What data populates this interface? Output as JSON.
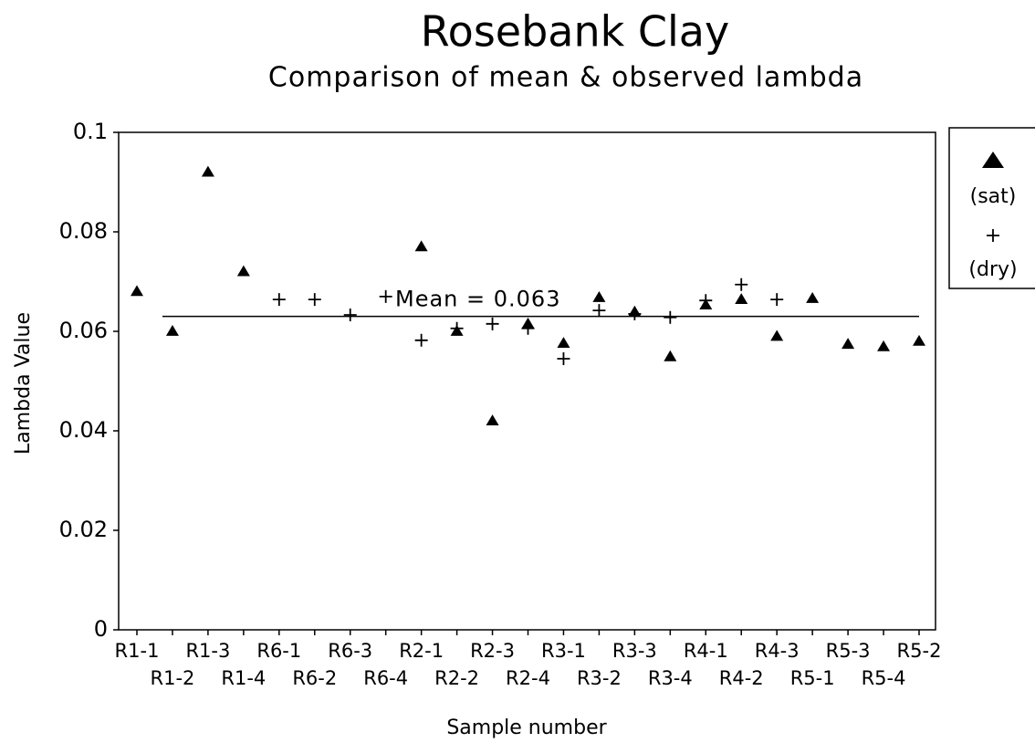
{
  "chart_data": {
    "type": "scatter",
    "title": "Rosebank Clay",
    "subtitle": "Comparison of mean & observed lambda",
    "x_label": "Sample number",
    "y_label": "Lambda Value",
    "categories": [
      "R1-1",
      "R1-2",
      "R1-3",
      "R1-4",
      "R6-1",
      "R6-2",
      "R6-3",
      "R6-4",
      "R2-1",
      "R2-2",
      "R2-3",
      "R2-4",
      "R3-1",
      "R3-2",
      "R3-3",
      "R3-4",
      "R4-1",
      "R4-2",
      "R4-3",
      "R5-1",
      "R5-3",
      "R5-4",
      "R5-2"
    ],
    "series": [
      {
        "name": "(sat)",
        "marker": "triangle",
        "color": "#000000",
        "values": [
          0.068,
          0.06,
          0.092,
          0.072,
          null,
          null,
          null,
          null,
          0.077,
          0.06,
          0.042,
          0.0615,
          0.0576,
          0.0668,
          0.0639,
          0.0549,
          0.0653,
          0.0664,
          0.059,
          0.0666,
          0.0574,
          0.0569,
          0.058
        ]
      },
      {
        "name": "(dry)",
        "marker": "plus",
        "color": "#000000",
        "values": [
          null,
          null,
          null,
          null,
          0.0664,
          0.0664,
          0.0633,
          0.067,
          0.0582,
          0.0606,
          0.0615,
          0.0606,
          0.0545,
          0.0642,
          0.0635,
          0.0628,
          0.0662,
          0.0694,
          0.0664,
          null,
          null,
          null,
          null
        ]
      }
    ],
    "mean": 0.063,
    "mean_label": "Mean = 0.063",
    "ylim": [
      0,
      0.1
    ],
    "yticks": [
      0,
      0.02,
      0.04,
      0.06,
      0.08,
      0.1
    ],
    "legend": "right"
  }
}
